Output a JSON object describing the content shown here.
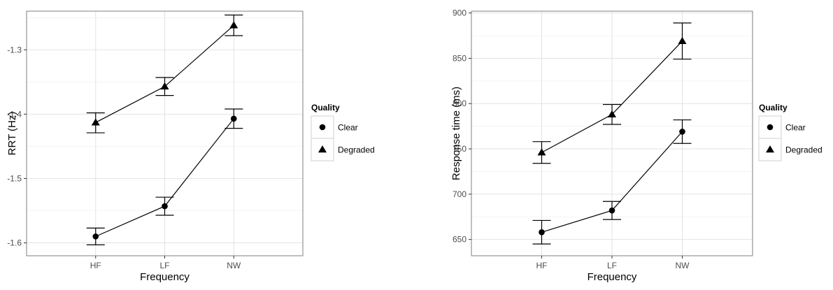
{
  "chart_data": [
    {
      "type": "line",
      "xlabel": "Frequency",
      "ylabel": "RRT (Hz)",
      "categories": [
        "HF",
        "LF",
        "NW"
      ],
      "yticks": [
        "-1.6",
        "-1.5",
        "-1.4",
        "-1.3"
      ],
      "ylim": [
        -1.62,
        -1.24
      ],
      "grid": true,
      "legend": {
        "title": "Quality",
        "placement": "right",
        "entries": [
          {
            "label": "Clear",
            "marker": "circle"
          },
          {
            "label": "Degraded",
            "marker": "triangle"
          }
        ]
      },
      "series": [
        {
          "name": "Clear",
          "marker": "circle",
          "values": [
            -1.59,
            -1.543,
            -1.407
          ],
          "lower": [
            -1.603,
            -1.557,
            -1.422
          ],
          "upper": [
            -1.577,
            -1.529,
            -1.392
          ]
        },
        {
          "name": "Degraded",
          "marker": "triangle",
          "values": [
            -1.413,
            -1.357,
            -1.262
          ],
          "lower": [
            -1.429,
            -1.371,
            -1.278
          ],
          "upper": [
            -1.398,
            -1.343,
            -1.246
          ]
        }
      ]
    },
    {
      "type": "line",
      "xlabel": "Frequency",
      "ylabel": "Response time (ms)",
      "categories": [
        "HF",
        "LF",
        "NW"
      ],
      "yticks": [
        "650",
        "700",
        "750",
        "800",
        "850",
        "900"
      ],
      "ylim": [
        632,
        902
      ],
      "grid": true,
      "legend": {
        "title": "Quality",
        "placement": "right",
        "entries": [
          {
            "label": "Clear",
            "marker": "circle"
          },
          {
            "label": "Degraded",
            "marker": "triangle"
          }
        ]
      },
      "series": [
        {
          "name": "Clear",
          "marker": "circle",
          "values": [
            658,
            682,
            769
          ],
          "lower": [
            645,
            672,
            756
          ],
          "upper": [
            671,
            692,
            782
          ]
        },
        {
          "name": "Degraded",
          "marker": "triangle",
          "values": [
            746,
            788,
            869
          ],
          "lower": [
            734,
            777,
            849
          ],
          "upper": [
            758,
            799,
            889
          ]
        }
      ]
    }
  ]
}
